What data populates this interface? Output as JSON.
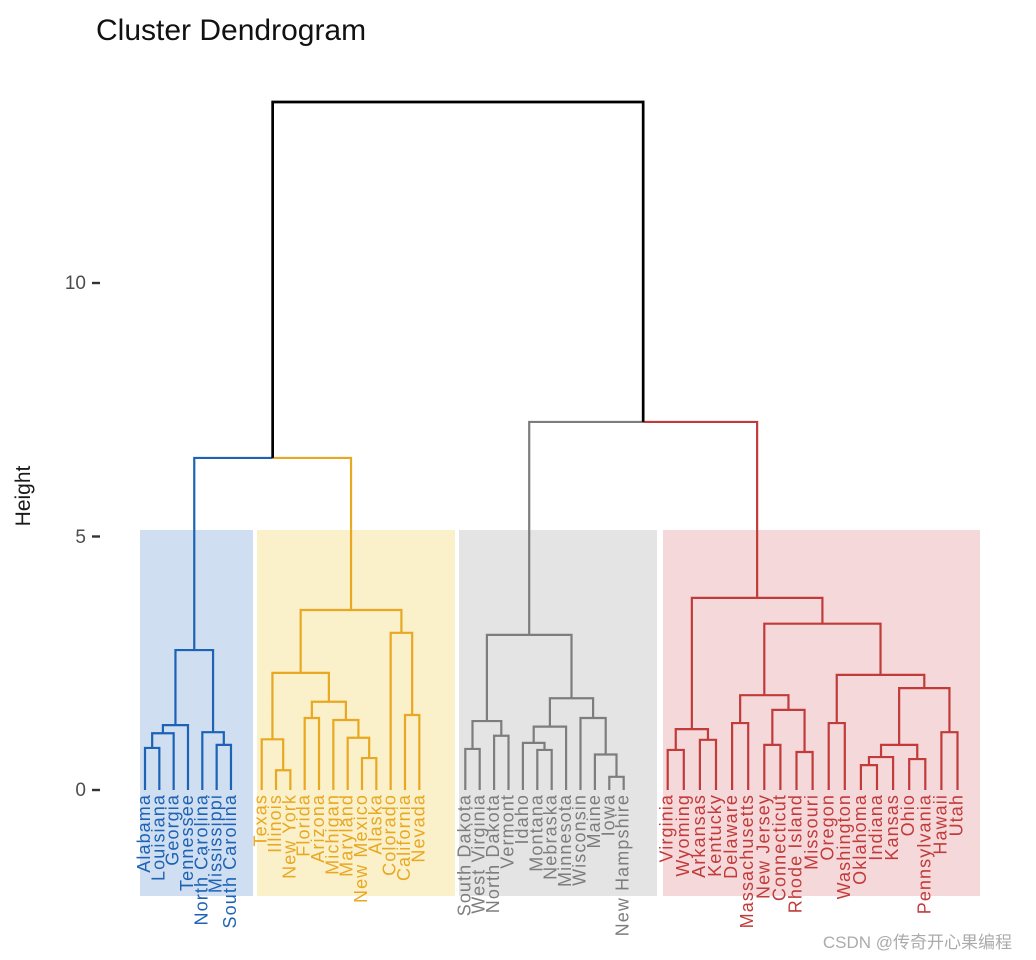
{
  "title": "Cluster Dendrogram",
  "y_axis": {
    "label": "Height",
    "ticks": [
      10,
      5,
      0
    ]
  },
  "watermark": "CSDN @传奇开心果编程",
  "chart_data": {
    "type": "dendrogram",
    "title": "Cluster Dendrogram",
    "ylabel": "Height",
    "yticks": [
      0,
      5,
      10
    ],
    "ylim": [
      0,
      14
    ],
    "grid": false,
    "orientation": "vertical",
    "n_leaves": 50,
    "root_height": 13.57,
    "left_branch": {
      "merge_height": 6.55,
      "joins": [
        "cluster_1",
        "cluster_2"
      ],
      "stem_color": "#000000"
    },
    "right_branch": {
      "merge_height": 7.26,
      "joins": [
        "cluster_3",
        "cluster_4"
      ],
      "stem_color": "#000000"
    },
    "clusters": [
      {
        "id": "cluster_1",
        "color": "#1D63B5",
        "fill": "#CFDEF0",
        "labels": [
          "Alabama",
          "Louisiana",
          "Georgia",
          "Tennessee",
          "North Carolina",
          "Mississippi",
          "South Carolina"
        ],
        "tree": {
          "h": 2.76,
          "c": [
            {
              "h": 1.28,
              "c": [
                {
                  "h": 1.12,
                  "c": [
                    {
                      "h": 0.83,
                      "c": [
                        "Alabama",
                        "Louisiana"
                      ]
                    },
                    "Georgia"
                  ]
                },
                "Tennessee"
              ]
            },
            {
              "h": 1.14,
              "c": [
                "North Carolina",
                {
                  "h": 0.89,
                  "c": [
                    "Mississippi",
                    "South Carolina"
                  ]
                }
              ]
            }
          ]
        }
      },
      {
        "id": "cluster_2",
        "color": "#E9A822",
        "fill": "#FAF0CA",
        "labels": [
          "Texas",
          "Illinois",
          "New York",
          "Florida",
          "Arizona",
          "Michigan",
          "Maryland",
          "New Mexico",
          "Alaska",
          "Colorado",
          "California",
          "Nevada"
        ],
        "tree": {
          "h": 3.55,
          "c": [
            {
              "h": 2.31,
              "c": [
                {
                  "h": 1.0,
                  "c": [
                    "Texas",
                    {
                      "h": 0.39,
                      "c": [
                        "Illinois",
                        "New York"
                      ]
                    }
                  ]
                },
                {
                  "h": 1.74,
                  "c": [
                    {
                      "h": 1.42,
                      "c": [
                        "Florida",
                        "Arizona"
                      ]
                    },
                    {
                      "h": 1.38,
                      "c": [
                        "Michigan",
                        {
                          "h": 1.03,
                          "c": [
                            "Maryland",
                            {
                              "h": 0.63,
                              "c": [
                                "New Mexico",
                                "Alaska"
                              ]
                            }
                          ]
                        }
                      ]
                    }
                  ]
                }
              ]
            },
            {
              "h": 3.1,
              "c": [
                "Colorado",
                {
                  "h": 1.48,
                  "c": [
                    "California",
                    "Nevada"
                  ]
                }
              ]
            }
          ]
        }
      },
      {
        "id": "cluster_3",
        "color": "#7D7D7D",
        "fill": "#E4E4E4",
        "labels": [
          "South Dakota",
          "West Virginia",
          "North Dakota",
          "Vermont",
          "Idaho",
          "Montana",
          "Nebraska",
          "Minnesota",
          "Wisconsin",
          "Maine",
          "Iowa",
          "New Hampshire"
        ],
        "tree": {
          "h": 3.06,
          "c": [
            {
              "h": 1.36,
              "c": [
                {
                  "h": 0.81,
                  "c": [
                    "South Dakota",
                    "West Virginia"
                  ]
                },
                {
                  "h": 1.07,
                  "c": [
                    "North Dakota",
                    "Vermont"
                  ]
                }
              ]
            },
            {
              "h": 1.81,
              "c": [
                {
                  "h": 1.25,
                  "c": [
                    {
                      "h": 0.93,
                      "c": [
                        "Idaho",
                        {
                          "h": 0.79,
                          "c": [
                            "Montana",
                            "Nebraska"
                          ]
                        }
                      ]
                    },
                    "Minnesota"
                  ]
                },
                {
                  "h": 1.42,
                  "c": [
                    "Wisconsin",
                    {
                      "h": 0.7,
                      "c": [
                        "Maine",
                        {
                          "h": 0.26,
                          "c": [
                            "Iowa",
                            "New Hampshire"
                          ]
                        }
                      ]
                    }
                  ]
                }
              ]
            }
          ]
        }
      },
      {
        "id": "cluster_4",
        "color": "#C13B3B",
        "fill": "#F5D8D9",
        "labels": [
          "Virginia",
          "Wyoming",
          "Arkansas",
          "Kentucky",
          "Delaware",
          "Massachusetts",
          "New Jersey",
          "Connecticut",
          "Rhode Island",
          "Missouri",
          "Oregon",
          "Washington",
          "Oklahoma",
          "Indiana",
          "Kansas",
          "Ohio",
          "Pennsylvania",
          "Hawaii",
          "Utah"
        ],
        "tree": {
          "h": 3.79,
          "c": [
            {
              "h": 1.2,
              "c": [
                {
                  "h": 0.79,
                  "c": [
                    "Virginia",
                    "Wyoming"
                  ]
                },
                {
                  "h": 0.99,
                  "c": [
                    "Arkansas",
                    "Kentucky"
                  ]
                }
              ]
            },
            {
              "h": 3.28,
              "c": [
                {
                  "h": 1.87,
                  "c": [
                    {
                      "h": 1.32,
                      "c": [
                        "Delaware",
                        "Massachusetts"
                      ]
                    },
                    {
                      "h": 1.58,
                      "c": [
                        {
                          "h": 0.89,
                          "c": [
                            "New Jersey",
                            "Connecticut"
                          ]
                        },
                        {
                          "h": 0.75,
                          "c": [
                            "Rhode Island",
                            "Missouri"
                          ]
                        }
                      ]
                    }
                  ]
                },
                {
                  "h": 2.27,
                  "c": [
                    {
                      "h": 1.32,
                      "c": [
                        "Oregon",
                        "Washington"
                      ]
                    },
                    {
                      "h": 2.01,
                      "c": [
                        {
                          "h": 0.89,
                          "c": [
                            {
                              "h": 0.65,
                              "c": [
                                {
                                  "h": 0.49,
                                  "c": [
                                    "Oklahoma",
                                    "Indiana"
                                  ]
                                },
                                "Kansas"
                              ]
                            },
                            {
                              "h": 0.61,
                              "c": [
                                "Ohio",
                                "Pennsylvania"
                              ]
                            }
                          ]
                        },
                        {
                          "h": 1.14,
                          "c": [
                            "Hawaii",
                            "Utah"
                          ]
                        }
                      ]
                    }
                  ]
                }
              ]
            }
          ]
        }
      }
    ]
  }
}
